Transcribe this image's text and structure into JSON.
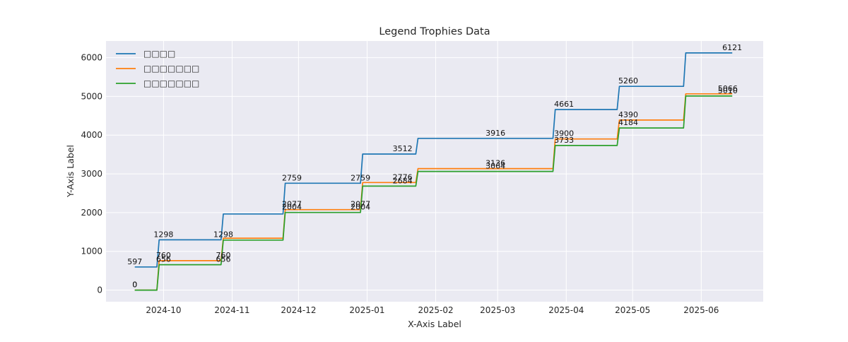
{
  "chart_data": {
    "type": "line",
    "title": "Legend Trophies Data",
    "xlabel": "X-Axis Label",
    "ylabel": "Y-Axis Label",
    "x": [
      "2024-09-18",
      "2024-09-28",
      "2024-09-29",
      "2024-10-27",
      "2024-10-28",
      "2024-11-24",
      "2024-11-25",
      "2024-12-29",
      "2024-12-30",
      "2025-01-23",
      "2025-01-24",
      "2025-03-26",
      "2025-03-27",
      "2025-04-24",
      "2025-04-25",
      "2025-05-24",
      "2025-05-25",
      "2025-06-15"
    ],
    "x_ticks": [
      "2024-10",
      "2024-11",
      "2024-12",
      "2025-01",
      "2025-02",
      "2025-03",
      "2025-04",
      "2025-05",
      "2025-06"
    ],
    "y_ticks": [
      0,
      1000,
      2000,
      3000,
      4000,
      5000,
      6000
    ],
    "xlim": [
      "2024-09-05",
      "2025-06-29"
    ],
    "ylim": [
      -300,
      6430
    ],
    "grid": true,
    "legend_position": "top-left",
    "series": [
      {
        "name": "□□□□",
        "color": "#1f77b4",
        "values": [
          597,
          597,
          1298,
          1298,
          1965,
          1965,
          2759,
          2759,
          3512,
          3512,
          3916,
          3916,
          4661,
          4661,
          5260,
          5260,
          6121,
          6121
        ]
      },
      {
        "name": "□□□□□□□",
        "color": "#ff7f0e",
        "values": [
          0,
          0,
          760,
          760,
          1340,
          1340,
          2077,
          2077,
          2776,
          2776,
          3136,
          3136,
          3900,
          3900,
          4390,
          4390,
          5066,
          5066
        ]
      },
      {
        "name": "□□□□□□□",
        "color": "#2ca02c",
        "values": [
          0,
          0,
          656,
          656,
          1290,
          1290,
          2004,
          2004,
          2684,
          2684,
          3064,
          3064,
          3733,
          3733,
          4184,
          4184,
          5010,
          5010
        ]
      }
    ],
    "annotations": [
      {
        "x": "2024-09-18",
        "y": 597,
        "text": "597"
      },
      {
        "x": "2024-09-18",
        "y": 0,
        "text": "0"
      },
      {
        "x": "2024-09-18",
        "y": 0,
        "text": "0"
      },
      {
        "x": "2024-10-01",
        "y": 1298,
        "text": "1298"
      },
      {
        "x": "2024-10-01",
        "y": 760,
        "text": "760"
      },
      {
        "x": "2024-10-01",
        "y": 656,
        "text": "656"
      },
      {
        "x": "2024-10-28",
        "y": 1298,
        "text": "1298"
      },
      {
        "x": "2024-10-28",
        "y": 760,
        "text": "760"
      },
      {
        "x": "2024-10-28",
        "y": 656,
        "text": "656"
      },
      {
        "x": "2024-11-28",
        "y": 2759,
        "text": "2759"
      },
      {
        "x": "2024-11-28",
        "y": 2077,
        "text": "2077"
      },
      {
        "x": "2024-11-28",
        "y": 2004,
        "text": "2004"
      },
      {
        "x": "2024-12-29",
        "y": 2759,
        "text": "2759"
      },
      {
        "x": "2024-12-29",
        "y": 2077,
        "text": "2077"
      },
      {
        "x": "2024-12-29",
        "y": 2004,
        "text": "2004"
      },
      {
        "x": "2025-01-17",
        "y": 3512,
        "text": "3512"
      },
      {
        "x": "2025-01-17",
        "y": 2776,
        "text": "2776"
      },
      {
        "x": "2025-01-17",
        "y": 2684,
        "text": "2684"
      },
      {
        "x": "2025-02-28",
        "y": 3916,
        "text": "3916"
      },
      {
        "x": "2025-02-28",
        "y": 3136,
        "text": "3136"
      },
      {
        "x": "2025-02-28",
        "y": 3064,
        "text": "3064"
      },
      {
        "x": "2025-03-31",
        "y": 4661,
        "text": "4661"
      },
      {
        "x": "2025-03-31",
        "y": 3900,
        "text": "3900"
      },
      {
        "x": "2025-03-31",
        "y": 3733,
        "text": "3733"
      },
      {
        "x": "2025-04-29",
        "y": 5260,
        "text": "5260"
      },
      {
        "x": "2025-04-29",
        "y": 4390,
        "text": "4390"
      },
      {
        "x": "2025-04-29",
        "y": 4184,
        "text": "4184"
      },
      {
        "x": "2025-06-15",
        "y": 6121,
        "text": "6121"
      },
      {
        "x": "2025-06-13",
        "y": 5066,
        "text": "5066"
      },
      {
        "x": "2025-06-13",
        "y": 5010,
        "text": "5010"
      }
    ],
    "colors": {
      "plot_bg": "#eaeaf2",
      "grid": "#ffffff",
      "text": "#262626"
    }
  }
}
